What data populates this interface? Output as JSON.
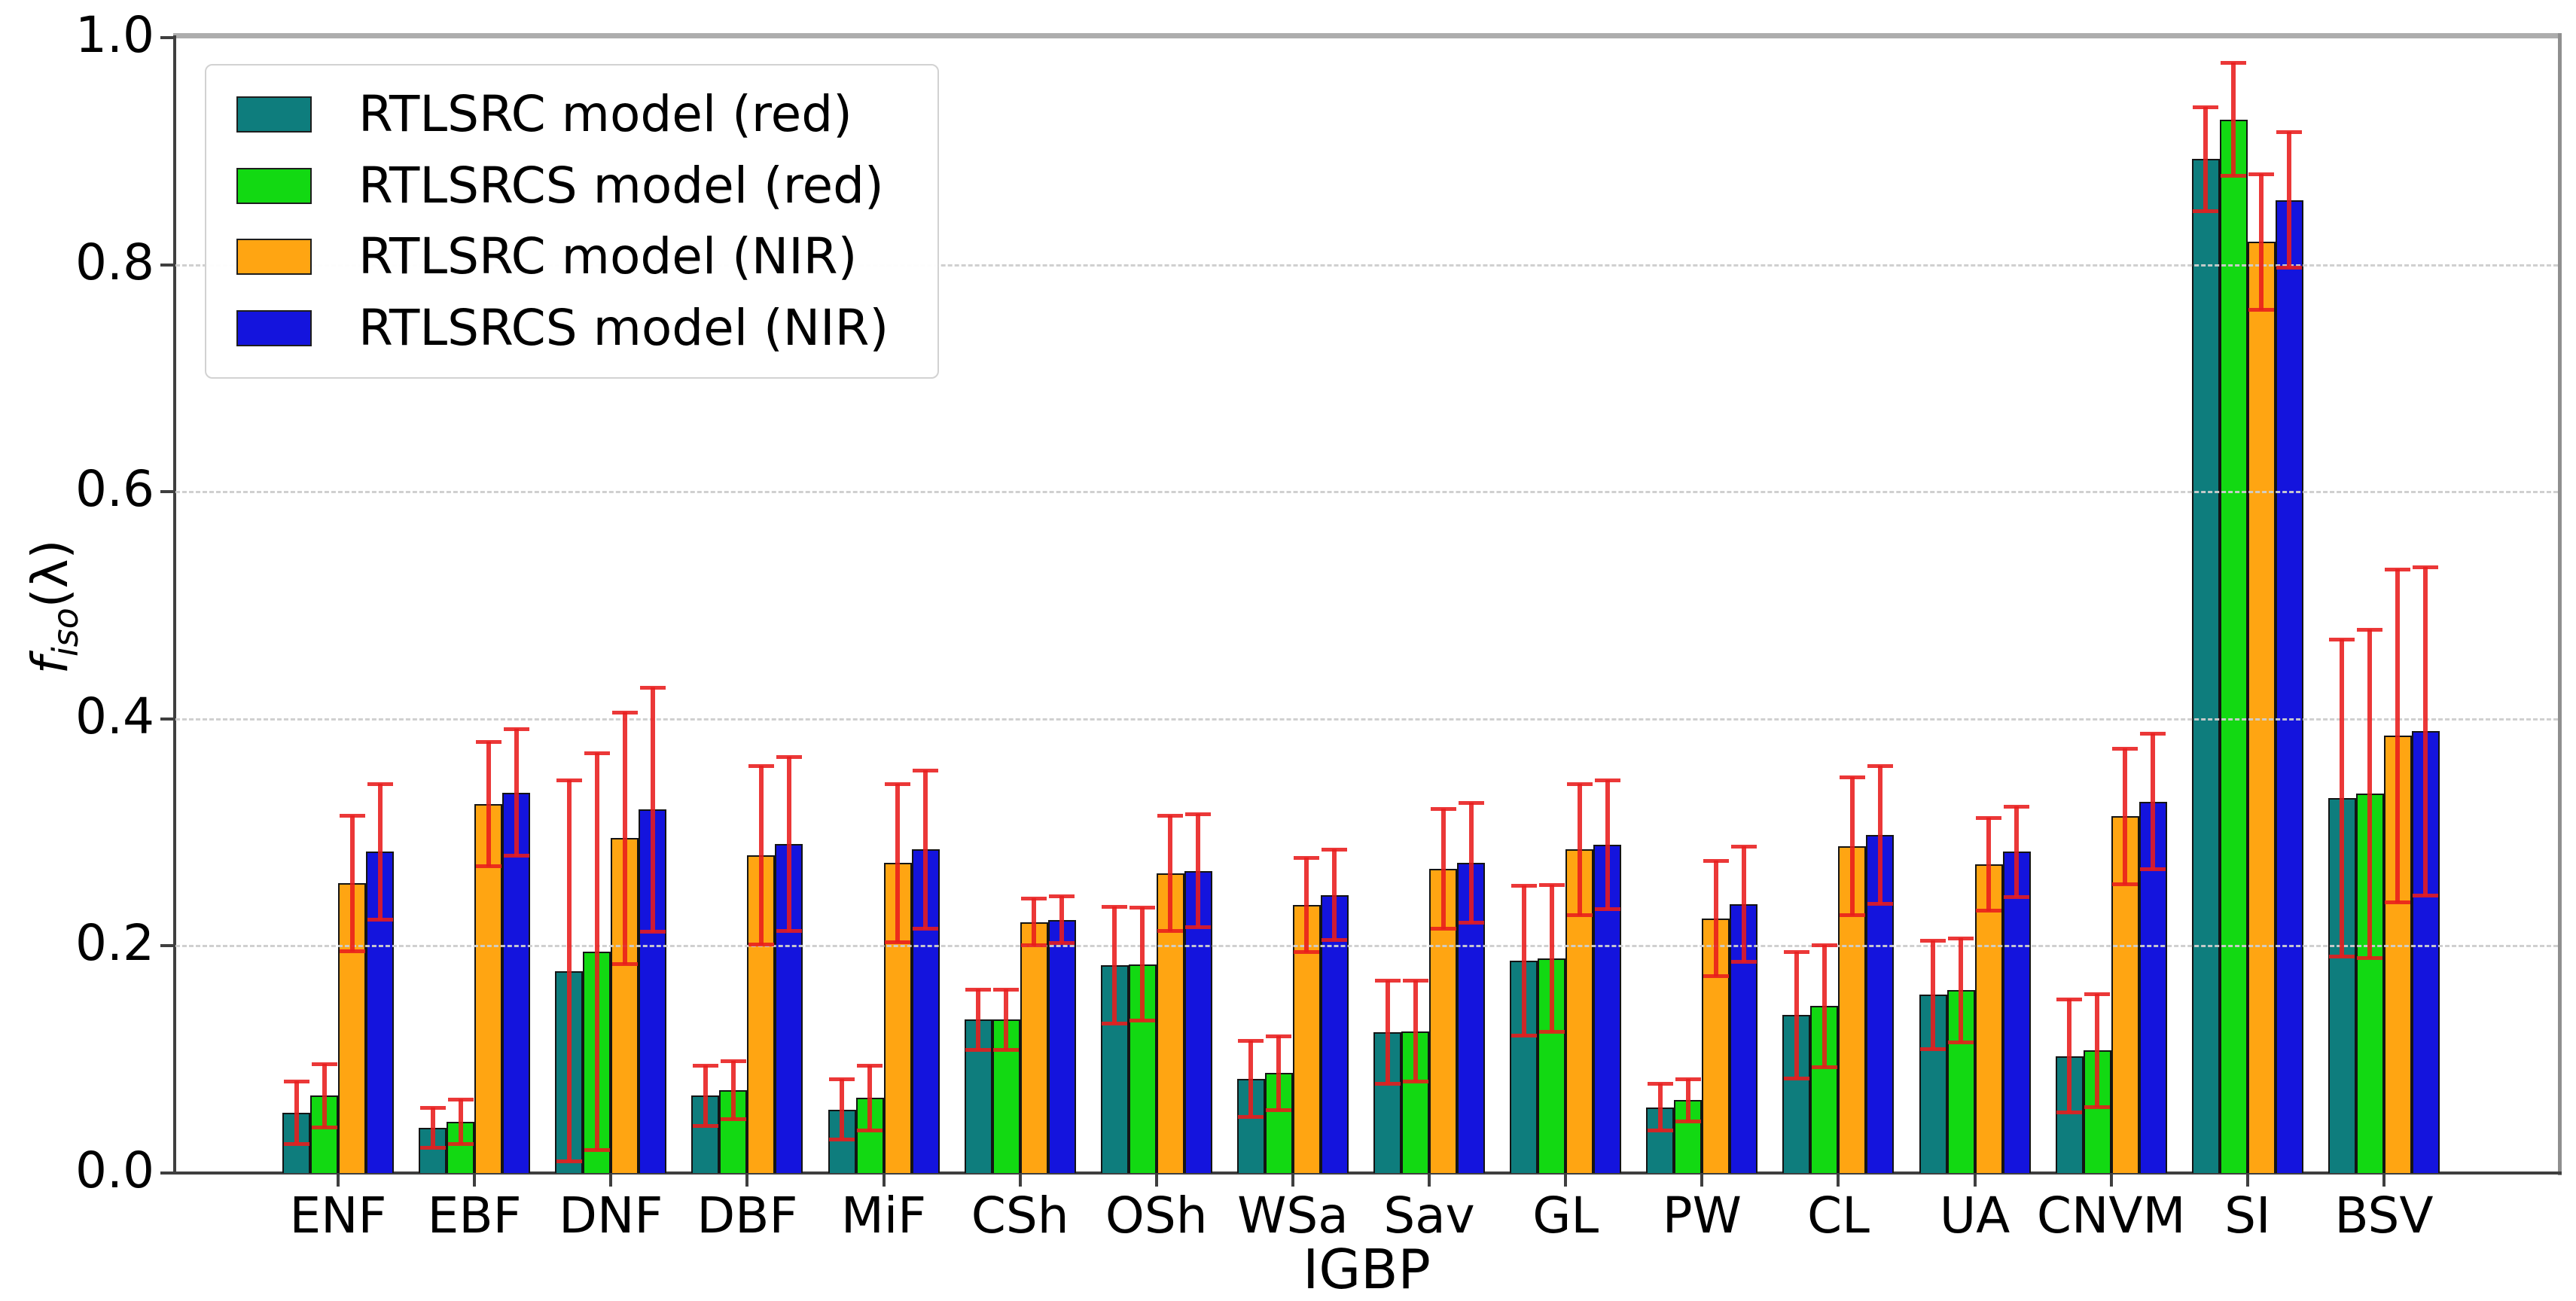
{
  "chart_data": {
    "type": "bar",
    "title": "",
    "xlabel": "IGBP",
    "ylabel": "f_iso(lambda)",
    "ylabel_parts": {
      "f": "f",
      "sub": "iso",
      "rest": "(λ)"
    },
    "ylim": [
      0.0,
      1.0
    ],
    "yticks": [
      0.0,
      0.2,
      0.4,
      0.6,
      0.8,
      1.0
    ],
    "grid": "horizontal dashed gridlines at 0.2 intervals",
    "legend_position": "upper left",
    "error_bar_color": "#e81c1c",
    "categories": [
      "ENF",
      "EBF",
      "DNF",
      "DBF",
      "MiF",
      "CSh",
      "OSh",
      "WSa",
      "Sav",
      "GL",
      "PW",
      "CL",
      "UA",
      "CNVM",
      "SI",
      "BSV"
    ],
    "series": [
      {
        "name": "RTLSRC model (red)",
        "color": "#0e7d7d",
        "values": [
          0.053,
          0.04,
          0.178,
          0.068,
          0.056,
          0.135,
          0.183,
          0.083,
          0.124,
          0.187,
          0.058,
          0.139,
          0.157,
          0.103,
          0.893,
          0.33
        ],
        "errors": [
          0.028,
          0.018,
          0.168,
          0.027,
          0.027,
          0.027,
          0.052,
          0.034,
          0.046,
          0.066,
          0.021,
          0.056,
          0.048,
          0.05,
          0.046,
          0.14
        ]
      },
      {
        "name": "RTLSRCS model (red)",
        "color": "#12d912",
        "values": [
          0.068,
          0.045,
          0.195,
          0.073,
          0.066,
          0.135,
          0.184,
          0.088,
          0.125,
          0.189,
          0.064,
          0.147,
          0.161,
          0.108,
          0.928,
          0.334
        ],
        "errors": [
          0.028,
          0.02,
          0.175,
          0.026,
          0.029,
          0.027,
          0.05,
          0.033,
          0.045,
          0.065,
          0.019,
          0.054,
          0.046,
          0.05,
          0.05,
          0.145
        ]
      },
      {
        "name": "RTLSRC model (NIR)",
        "color": "#ffa512",
        "values": [
          0.255,
          0.325,
          0.295,
          0.28,
          0.273,
          0.221,
          0.264,
          0.236,
          0.268,
          0.285,
          0.224,
          0.288,
          0.272,
          0.314,
          0.82,
          0.385
        ],
        "errors": [
          0.06,
          0.055,
          0.111,
          0.079,
          0.07,
          0.021,
          0.051,
          0.042,
          0.053,
          0.058,
          0.051,
          0.061,
          0.041,
          0.06,
          0.06,
          0.147
        ]
      },
      {
        "name": "RTLSRCS model (NIR)",
        "color": "#1414dd",
        "values": [
          0.283,
          0.335,
          0.32,
          0.29,
          0.285,
          0.223,
          0.266,
          0.245,
          0.273,
          0.289,
          0.237,
          0.298,
          0.283,
          0.327,
          0.857,
          0.389
        ],
        "errors": [
          0.06,
          0.056,
          0.108,
          0.077,
          0.07,
          0.021,
          0.05,
          0.04,
          0.053,
          0.057,
          0.051,
          0.061,
          0.04,
          0.06,
          0.06,
          0.145
        ]
      }
    ]
  }
}
